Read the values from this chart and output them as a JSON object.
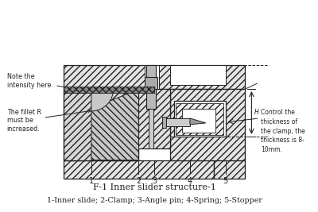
{
  "title": "F-1 Inner slider structure-1",
  "subtitle": "1-Inner slide; 2-Clamp; 3-Angle pin; 4-Spring; 5-Stopper",
  "bg_color": "#ffffff",
  "line_color": "#222222",
  "annotation_left_top": "Note the\nintensity here.",
  "annotation_left_mid": "The fillet R\nmust be\nincreased.",
  "annotation_right": "Control the\nthickness of\nthe clamp, the\nthickness is 8-\n10mm.",
  "labels": [
    "1",
    "2",
    "3",
    "4",
    "5"
  ],
  "figsize": [
    4.0,
    2.67
  ],
  "dpi": 100
}
